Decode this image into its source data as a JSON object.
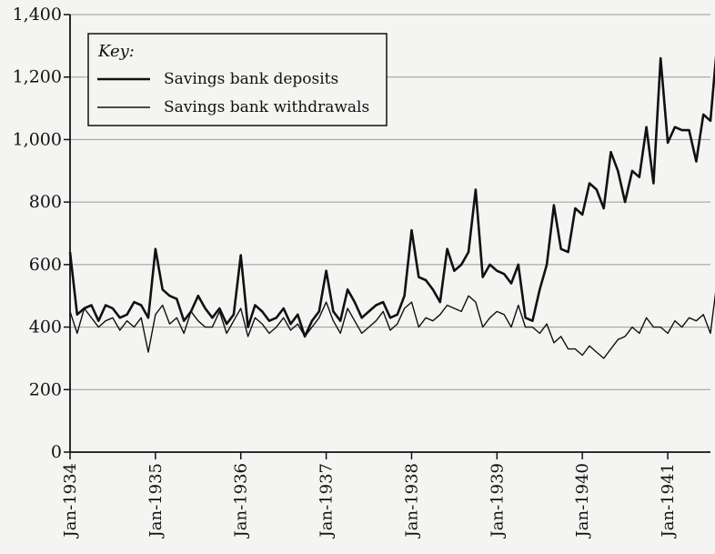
{
  "chart_data": {
    "type": "line",
    "legend_title": "Key:",
    "legend_position": "top-left",
    "grid": true,
    "ylim": [
      0,
      1400
    ],
    "yticks": [
      "0",
      "200",
      "400",
      "600",
      "800",
      "1,000",
      "1,200",
      "1,400"
    ],
    "ytick_values": [
      0,
      200,
      400,
      600,
      800,
      1000,
      1200,
      1400
    ],
    "xlim": [
      0,
      90
    ],
    "xticks": [
      "Jan-1934",
      "Jan-1935",
      "Jan-1936",
      "Jan-1937",
      "Jan-1938",
      "Jan-1939",
      "Jan-1940",
      "Jan-1941"
    ],
    "xtick_values": [
      0,
      12,
      24,
      36,
      48,
      60,
      72,
      84
    ],
    "colors": {
      "series": "#111111",
      "grid": "#9a9a9a"
    },
    "series": [
      {
        "name": "Savings bank deposits",
        "values": [
          640,
          440,
          460,
          470,
          420,
          470,
          460,
          430,
          440,
          480,
          470,
          430,
          650,
          520,
          500,
          490,
          420,
          450,
          500,
          460,
          430,
          460,
          410,
          440,
          630,
          400,
          470,
          450,
          420,
          430,
          460,
          410,
          440,
          370,
          420,
          450,
          580,
          450,
          420,
          520,
          480,
          430,
          450,
          470,
          480,
          430,
          440,
          500,
          710,
          560,
          550,
          520,
          480,
          650,
          580,
          600,
          640,
          840,
          560,
          600,
          580,
          570,
          540,
          600,
          430,
          420,
          520,
          600,
          790,
          650,
          640,
          780,
          760,
          860,
          840,
          780,
          960,
          900,
          800,
          900,
          880,
          1040,
          860,
          1260,
          990,
          1040,
          1030,
          1030,
          930,
          1080,
          1060,
          1320
        ]
      },
      {
        "name": "Savings bank withdrawals",
        "values": [
          450,
          380,
          460,
          430,
          400,
          420,
          430,
          390,
          420,
          400,
          430,
          320,
          440,
          470,
          410,
          430,
          380,
          450,
          420,
          400,
          400,
          450,
          380,
          420,
          460,
          370,
          430,
          410,
          380,
          400,
          430,
          390,
          410,
          370,
          400,
          430,
          480,
          420,
          380,
          460,
          420,
          380,
          400,
          420,
          450,
          390,
          410,
          460,
          480,
          400,
          430,
          420,
          440,
          470,
          460,
          450,
          500,
          480,
          400,
          430,
          450,
          440,
          400,
          470,
          400,
          400,
          380,
          410,
          350,
          370,
          330,
          330,
          310,
          340,
          320,
          300,
          330,
          360,
          370,
          400,
          380,
          430,
          400,
          400,
          380,
          420,
          400,
          430,
          420,
          440,
          380,
          560
        ]
      }
    ]
  }
}
